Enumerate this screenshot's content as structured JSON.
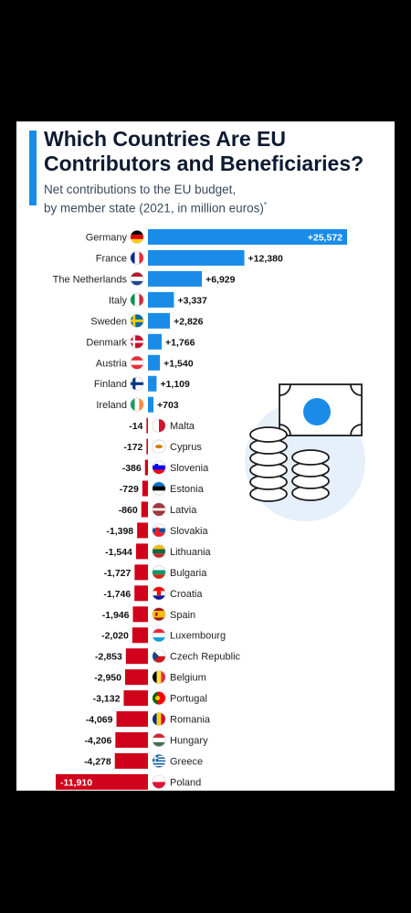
{
  "colors": {
    "page_background": "#000000",
    "card": "#ffffff",
    "accent": "#1a8ce8",
    "positive": "#1a8ce8",
    "negative": "#d0021b",
    "title": "#0d1a30",
    "illustration_circle": "#e6f0fb"
  },
  "header": {
    "title": "Which Countries Are EU Contributors and Beneficiaries?",
    "subtitle_line1": "Net contributions to the EU budget,",
    "subtitle_line2": "by member state (2021, in million euros)",
    "subtitle_mark": "*"
  },
  "illustration": {
    "icon": "banknote-and-coin-stacks-icon"
  },
  "chart_data": {
    "type": "bar",
    "orientation": "horizontal",
    "title": "Which Countries Are EU Contributors and Beneficiaries?",
    "subtitle": "Net contributions to the EU budget, by member state (2021, in million euros)*",
    "xlim": [
      -12500,
      26000
    ],
    "grid": false,
    "legend": "none",
    "categories": [
      "Germany",
      "France",
      "The Netherlands",
      "Italy",
      "Sweden",
      "Denmark",
      "Austria",
      "Finland",
      "Ireland",
      "Malta",
      "Cyprus",
      "Slovenia",
      "Estonia",
      "Latvia",
      "Slovakia",
      "Lithuania",
      "Bulgaria",
      "Croatia",
      "Spain",
      "Luxembourg",
      "Czech Republic",
      "Belgium",
      "Portugal",
      "Romania",
      "Hungary",
      "Greece",
      "Poland"
    ],
    "values": [
      25572,
      12380,
      6929,
      3337,
      2826,
      1766,
      1540,
      1109,
      703,
      -14,
      -172,
      -386,
      -729,
      -860,
      -1398,
      -1544,
      -1727,
      -1746,
      -1946,
      -2020,
      -2853,
      -2950,
      -3132,
      -4069,
      -4206,
      -4278,
      -11910
    ],
    "value_labels": [
      "+25,572",
      "+12,380",
      "+6,929",
      "+3,337",
      "+2,826",
      "+1,766",
      "+1,540",
      "+1,109",
      "+703",
      "-14",
      "-172",
      "-386",
      "-729",
      "-860",
      "-1,398",
      "-1,544",
      "-1,727",
      "-1,746",
      "-1,946",
      "-2,020",
      "-2,853",
      "-2,950",
      "-3,132",
      "-4,069",
      "-4,206",
      "-4,278",
      "-11,910"
    ],
    "flags": [
      "de",
      "fr",
      "nl",
      "it",
      "se",
      "dk",
      "at",
      "fi",
      "ie",
      "mt",
      "cy",
      "si",
      "ee",
      "lv",
      "sk",
      "lt",
      "bg",
      "hr",
      "es",
      "lu",
      "cz",
      "be",
      "pt",
      "ro",
      "hu",
      "gr",
      "pl"
    ]
  }
}
